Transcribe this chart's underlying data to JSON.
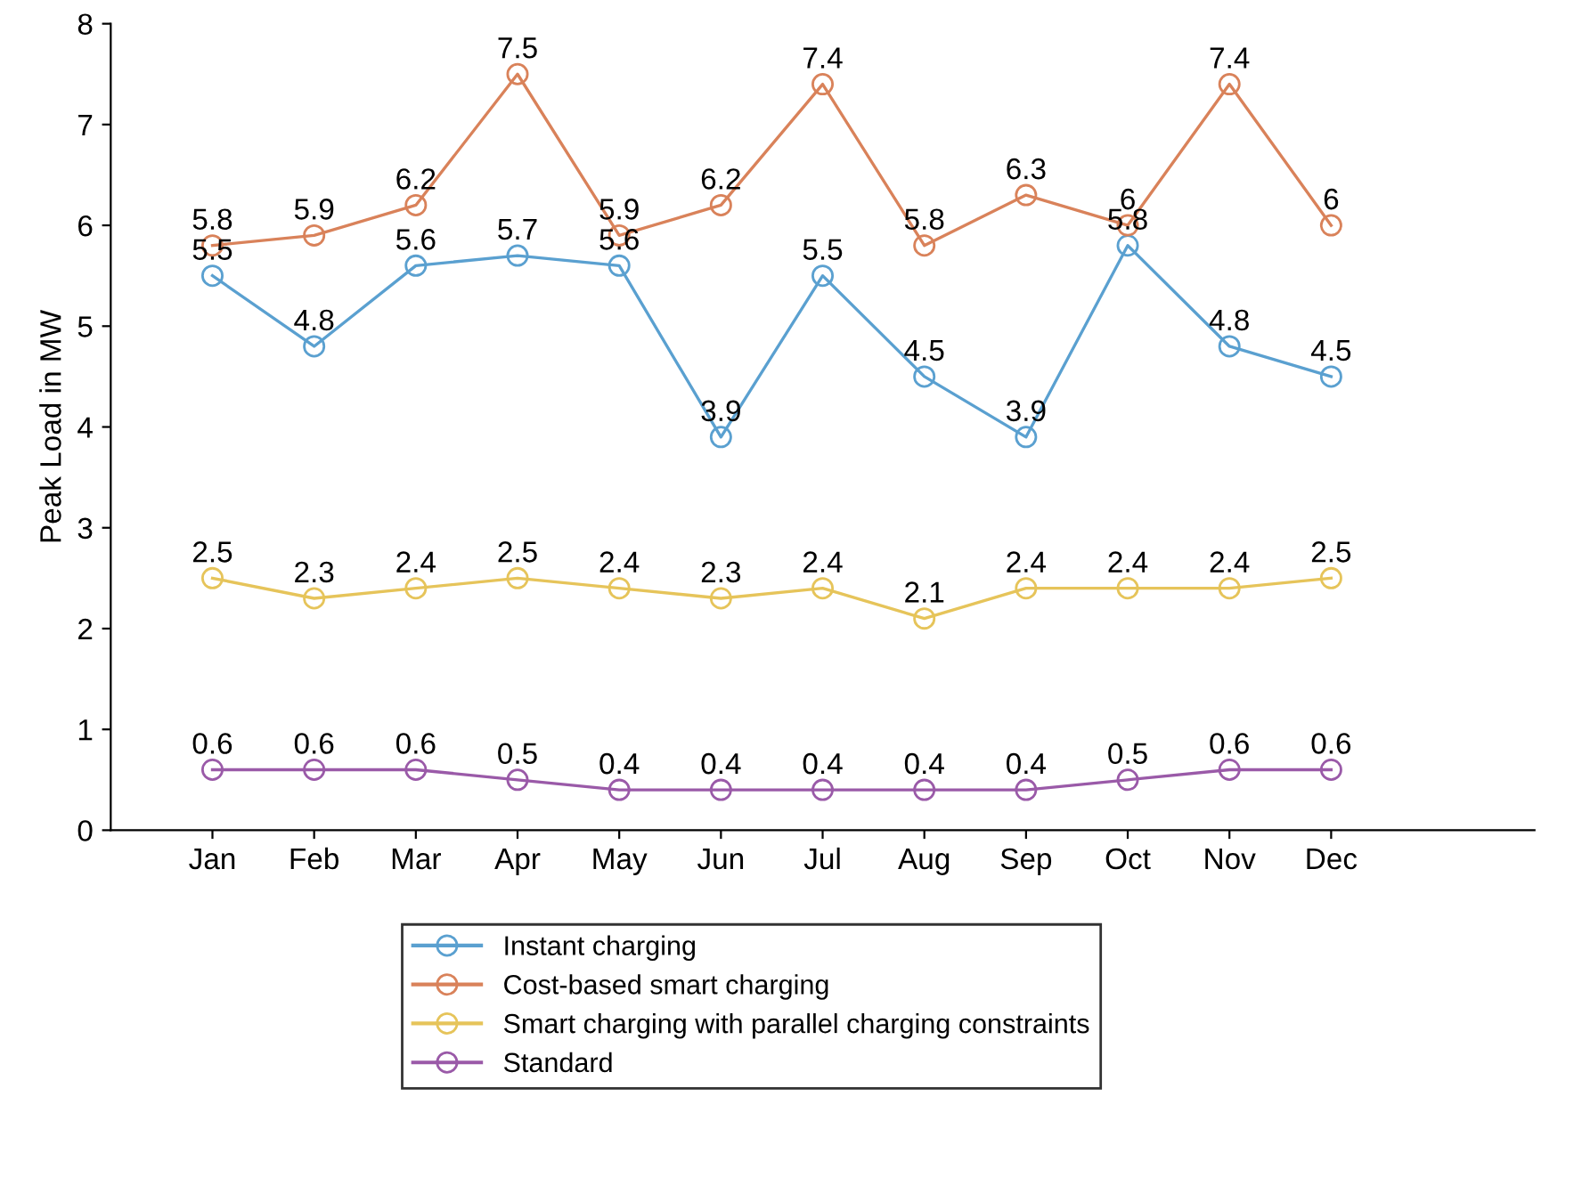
{
  "chart_data": {
    "type": "line",
    "ylabel": "Peak Load in MW",
    "categories": [
      "Jan",
      "Feb",
      "Mar",
      "Apr",
      "May",
      "Jun",
      "Jul",
      "Aug",
      "Sep",
      "Oct",
      "Nov",
      "Dec"
    ],
    "series": [
      {
        "name": "Instant charging",
        "color": "#5aa0d0",
        "values": [
          5.5,
          4.8,
          5.6,
          5.7,
          5.6,
          3.9,
          5.5,
          4.5,
          3.9,
          5.8,
          4.8,
          4.5
        ]
      },
      {
        "name": "Cost-based smart charging",
        "color": "#d9825a",
        "values": [
          5.8,
          5.9,
          6.2,
          7.5,
          5.9,
          6.2,
          7.4,
          5.8,
          6.3,
          6,
          7.4,
          6
        ]
      },
      {
        "name": "Smart charging with parallel charging constraints",
        "color": "#e6c45a",
        "values": [
          2.5,
          2.3,
          2.4,
          2.5,
          2.4,
          2.3,
          2.4,
          2.1,
          2.4,
          2.4,
          2.4,
          2.5
        ]
      },
      {
        "name": "Standard",
        "color": "#9a5aa8",
        "values": [
          0.6,
          0.6,
          0.6,
          0.5,
          0.4,
          0.4,
          0.4,
          0.4,
          0.4,
          0.5,
          0.6,
          0.6
        ]
      }
    ],
    "ylim": [
      0,
      8
    ],
    "yticks": [
      0,
      1,
      2,
      3,
      4,
      5,
      6,
      7,
      8
    ],
    "marker": "circle",
    "line_style": "solid",
    "data_labels": true,
    "grid": false,
    "legend": "bottom"
  }
}
